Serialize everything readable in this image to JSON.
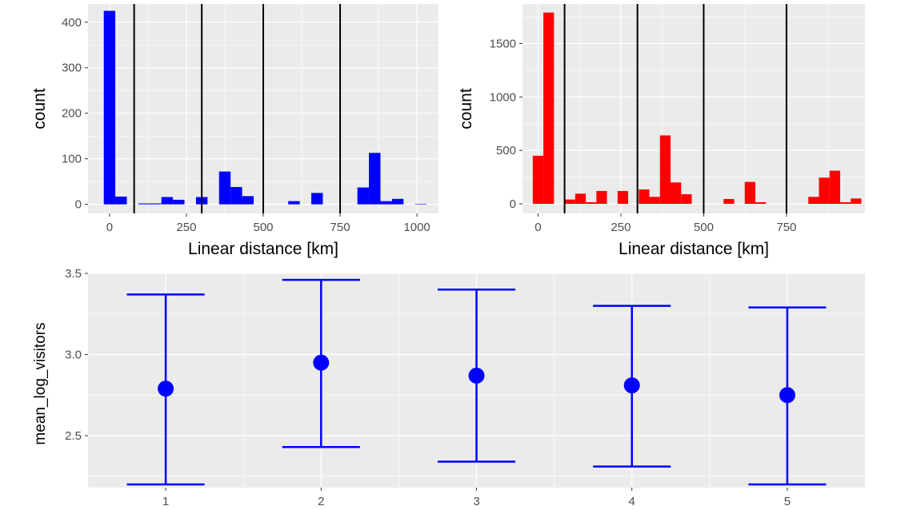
{
  "chart_data": [
    {
      "type": "bar",
      "subtype": "histogram",
      "xlabel": "Linear distance [km]",
      "ylabel": "count",
      "xlim": [
        -70,
        1070
      ],
      "ylim": [
        -20,
        440
      ],
      "x_ticks": [
        0,
        250,
        500,
        750,
        1000
      ],
      "x_tick_labels": [
        "0",
        "250",
        "500",
        "750",
        "1000"
      ],
      "y_ticks": [
        0,
        100,
        200,
        300,
        400
      ],
      "y_tick_labels": [
        "0",
        "100",
        "200",
        "300",
        "400"
      ],
      "bin_width": 37.5,
      "color": "#0000ff",
      "bins": [
        {
          "x": 0,
          "count": 425
        },
        {
          "x": 37.5,
          "count": 17
        },
        {
          "x": 75,
          "count": 0
        },
        {
          "x": 112.5,
          "count": 2
        },
        {
          "x": 150,
          "count": 2
        },
        {
          "x": 187.5,
          "count": 16
        },
        {
          "x": 225,
          "count": 10
        },
        {
          "x": 262.5,
          "count": 0
        },
        {
          "x": 300,
          "count": 16
        },
        {
          "x": 337.5,
          "count": 0
        },
        {
          "x": 375,
          "count": 72
        },
        {
          "x": 412.5,
          "count": 38
        },
        {
          "x": 450,
          "count": 18
        },
        {
          "x": 487.5,
          "count": 0
        },
        {
          "x": 525,
          "count": 0
        },
        {
          "x": 562.5,
          "count": 0
        },
        {
          "x": 600,
          "count": 7
        },
        {
          "x": 637.5,
          "count": 0
        },
        {
          "x": 675,
          "count": 25
        },
        {
          "x": 712.5,
          "count": 0
        },
        {
          "x": 750,
          "count": 0
        },
        {
          "x": 787.5,
          "count": 0
        },
        {
          "x": 825,
          "count": 37
        },
        {
          "x": 862.5,
          "count": 113
        },
        {
          "x": 900,
          "count": 7
        },
        {
          "x": 937.5,
          "count": 12
        },
        {
          "x": 975,
          "count": 0
        },
        {
          "x": 1012.5,
          "count": 1
        }
      ],
      "vlines": [
        80,
        300,
        500,
        750
      ],
      "grid": true
    },
    {
      "type": "bar",
      "subtype": "histogram",
      "xlabel": "Linear distance [km]",
      "ylabel": "count",
      "xlim": [
        -47,
        987
      ],
      "ylim": [
        -90,
        1870
      ],
      "x_ticks": [
        0,
        250,
        500,
        750
      ],
      "x_tick_labels": [
        "0",
        "250",
        "500",
        "750"
      ],
      "y_ticks": [
        0,
        500,
        1000,
        1500
      ],
      "y_tick_labels": [
        "0",
        "500",
        "1000",
        "1500"
      ],
      "bin_width": 32,
      "color": "#ff0000",
      "bins": [
        {
          "x": 0,
          "count": 450
        },
        {
          "x": 32,
          "count": 1790
        },
        {
          "x": 64,
          "count": 0
        },
        {
          "x": 96,
          "count": 40
        },
        {
          "x": 128,
          "count": 95
        },
        {
          "x": 160,
          "count": 15
        },
        {
          "x": 192,
          "count": 120
        },
        {
          "x": 224,
          "count": 0
        },
        {
          "x": 256,
          "count": 120
        },
        {
          "x": 288,
          "count": 0
        },
        {
          "x": 320,
          "count": 135
        },
        {
          "x": 352,
          "count": 65
        },
        {
          "x": 384,
          "count": 640
        },
        {
          "x": 416,
          "count": 200
        },
        {
          "x": 448,
          "count": 90
        },
        {
          "x": 480,
          "count": 0
        },
        {
          "x": 512,
          "count": 0
        },
        {
          "x": 544,
          "count": 0
        },
        {
          "x": 576,
          "count": 45
        },
        {
          "x": 608,
          "count": 0
        },
        {
          "x": 640,
          "count": 205
        },
        {
          "x": 672,
          "count": 15
        },
        {
          "x": 704,
          "count": 0
        },
        {
          "x": 736,
          "count": 0
        },
        {
          "x": 768,
          "count": 0
        },
        {
          "x": 800,
          "count": 0
        },
        {
          "x": 832,
          "count": 65
        },
        {
          "x": 864,
          "count": 245
        },
        {
          "x": 896,
          "count": 310
        },
        {
          "x": 928,
          "count": 15
        },
        {
          "x": 960,
          "count": 50
        }
      ],
      "vlines": [
        80,
        300,
        500,
        750
      ],
      "grid": true
    },
    {
      "type": "scatter",
      "subtype": "errorbar",
      "xlabel": "",
      "ylabel": "mean_log_visitors",
      "xlim": [
        0.5,
        5.5
      ],
      "ylim": [
        2.18,
        3.5
      ],
      "x_ticks": [
        1,
        2,
        3,
        4,
        5
      ],
      "x_tick_labels": [
        "1",
        "2",
        "3",
        "4",
        "5"
      ],
      "y_ticks": [
        2.5,
        3.0,
        3.5
      ],
      "y_tick_labels": [
        "2.5",
        "3.0",
        "3.5"
      ],
      "color": "#0000ff",
      "points": [
        {
          "x": 1,
          "y": 2.79,
          "ymin": 2.2,
          "ymax": 3.37
        },
        {
          "x": 2,
          "y": 2.95,
          "ymin": 2.43,
          "ymax": 3.46
        },
        {
          "x": 3,
          "y": 2.87,
          "ymin": 2.34,
          "ymax": 3.4
        },
        {
          "x": 4,
          "y": 2.81,
          "ymin": 2.31,
          "ymax": 3.3
        },
        {
          "x": 5,
          "y": 2.75,
          "ymin": 2.2,
          "ymax": 3.29
        }
      ],
      "grid": true
    }
  ]
}
